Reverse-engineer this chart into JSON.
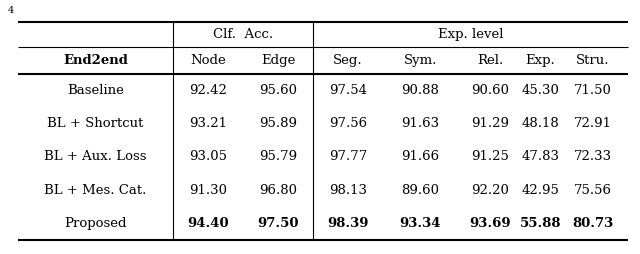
{
  "header_row1_clf": "Clf.  Acc.",
  "header_row1_exp": "Exp. level",
  "header_row2": [
    "End2end",
    "Node",
    "Edge",
    "Seg.",
    "Sym.",
    "Rel.",
    "Exp.",
    "Stru."
  ],
  "rows": [
    [
      "Baseline",
      "92.42",
      "95.60",
      "97.54",
      "90.88",
      "90.60",
      "45.30",
      "71.50"
    ],
    [
      "BL + Shortcut",
      "93.21",
      "95.89",
      "97.56",
      "91.63",
      "91.29",
      "48.18",
      "72.91"
    ],
    [
      "BL + Aux. Loss",
      "93.05",
      "95.79",
      "97.77",
      "91.66",
      "91.25",
      "47.83",
      "72.33"
    ],
    [
      "BL + Mes. Cat.",
      "91.30",
      "96.80",
      "98.13",
      "89.60",
      "92.20",
      "42.95",
      "75.56"
    ],
    [
      "Proposed",
      "94.40",
      "97.50",
      "98.39",
      "93.34",
      "93.69",
      "55.88",
      "80.73"
    ]
  ],
  "bold_row": 4,
  "figsize": [
    6.4,
    2.54
  ],
  "dpi": 100,
  "fig_label": "4"
}
